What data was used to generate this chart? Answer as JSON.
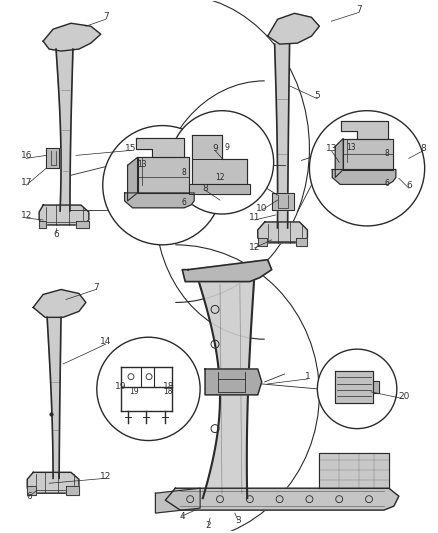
{
  "bg_color": "#ffffff",
  "line_color": "#2a2a2a",
  "label_color": "#333333",
  "pillar_fill": "#cccccc",
  "pillar_fill2": "#b8b8b8",
  "detail_fill": "#bbbbbb"
}
